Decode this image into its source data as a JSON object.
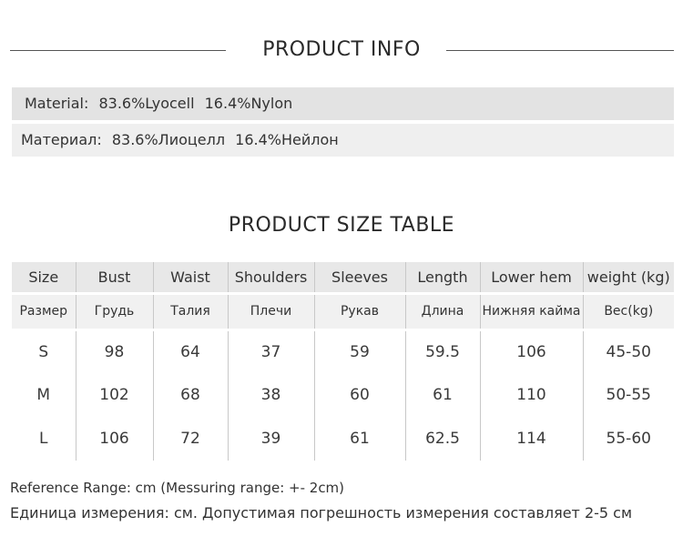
{
  "info": {
    "title": "PRODUCT INFO",
    "material_en": "Material:  83.6%Lyocell   16.4%Nylon",
    "material_ru": "Материал: 83.6%Лиоцелл   16.4%Нейлон"
  },
  "size_table": {
    "title": "PRODUCT SIZE TABLE",
    "headers_en": [
      "Size",
      "Bust",
      "Waist",
      "Shoulders",
      "Sleeves",
      "Length",
      "Lower hem",
      "weight (kg)"
    ],
    "headers_ru": [
      "Размер",
      "Грудь",
      "Талия",
      "Плечи",
      "Рукав",
      "Длина",
      "Нижняя кайма",
      "Вес(kg)"
    ],
    "rows": [
      [
        "S",
        "98",
        "64",
        "37",
        "59",
        "59.5",
        "106",
        "45-50"
      ],
      [
        "M",
        "102",
        "68",
        "38",
        "60",
        "61",
        "110",
        "50-55"
      ],
      [
        "L",
        "106",
        "72",
        "39",
        "61",
        "62.5",
        "114",
        "55-60"
      ]
    ]
  },
  "notes": {
    "en": "Reference Range: cm (Messuring range: +- 2cm)",
    "ru": "Единица измерения: см. Допустимая погрешность измерения составляет 2-5 см"
  }
}
